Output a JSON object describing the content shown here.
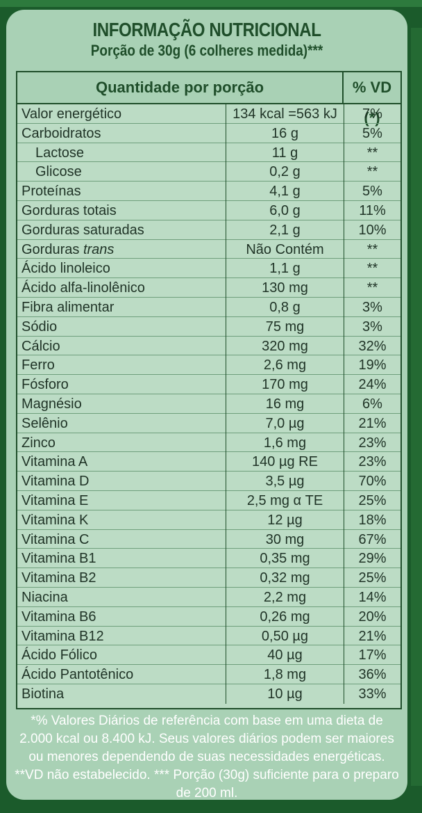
{
  "header": {
    "title": "INFORMAÇÃO NUTRICIONAL",
    "subtitle": "Porção de 30g (6 colheres medida)***"
  },
  "table": {
    "col_quantity": "Quantidade por porção",
    "col_vd": "% VD (*)",
    "rows": [
      {
        "name": "Valor  energético",
        "value": "134 kcal =563 kJ",
        "vd": "7%"
      },
      {
        "name": "Carboidratos",
        "value": "16 g",
        "vd": "5%"
      },
      {
        "name": "Lactose",
        "value": "11 g",
        "vd": "**"
      },
      {
        "name": "Glicose",
        "value": "0,2 g",
        "vd": "**"
      },
      {
        "name": "Proteínas",
        "value": "4,1 g",
        "vd": "5%"
      },
      {
        "name": "Gorduras totais",
        "value": "6,0 g",
        "vd": "11%"
      },
      {
        "name": "Gorduras saturadas",
        "value": "2,1 g",
        "vd": "10%"
      },
      {
        "name": "Gorduras",
        "name_italic": "trans",
        "value": "Não Contém",
        "vd": "**"
      },
      {
        "name": "Ácido linoleico",
        "value": "1,1 g",
        "vd": "**"
      },
      {
        "name": "Ácido alfa-linolênico",
        "value": "130 mg",
        "vd": "**"
      },
      {
        "name": "Fibra alimentar",
        "value": "0,8 g",
        "vd": "3%"
      },
      {
        "name": "Sódio",
        "value": "75 mg",
        "vd": "3%"
      },
      {
        "name": "Cálcio",
        "value": "320 mg",
        "vd": "32%"
      },
      {
        "name": "Ferro",
        "value": "2,6 mg",
        "vd": "19%"
      },
      {
        "name": "Fósforo",
        "value": "170 mg",
        "vd": "24%"
      },
      {
        "name": "Magnésio",
        "value": "16 mg",
        "vd": "6%"
      },
      {
        "name": "Selênio",
        "value": "7,0 µg",
        "vd": "21%"
      },
      {
        "name": "Zinco",
        "value": "1,6 mg",
        "vd": "23%"
      },
      {
        "name": "Vitamina A",
        "value": "140 µg RE",
        "vd": "23%"
      },
      {
        "name": "Vitamina D",
        "value": "3,5 µg",
        "vd": "70%"
      },
      {
        "name": "Vitamina E",
        "value": "2,5 mg α TE",
        "vd": "25%"
      },
      {
        "name": "Vitamina K",
        "value": "12 µg",
        "vd": "18%"
      },
      {
        "name": "Vitamina C",
        "value": "30 mg",
        "vd": "67%"
      },
      {
        "name": "Vitamina B1",
        "value": "0,35 mg",
        "vd": "29%"
      },
      {
        "name": "Vitamina B2",
        "value": "0,32 mg",
        "vd": "25%"
      },
      {
        "name": "Niacina",
        "value": "2,2 mg",
        "vd": "14%"
      },
      {
        "name": "Vitamina B6",
        "value": "0,26 mg",
        "vd": "20%"
      },
      {
        "name": "Vitamina B12",
        "value": "0,50 µg",
        "vd": "21%"
      },
      {
        "name": "Ácido Fólico",
        "value": "40 µg",
        "vd": "17%"
      },
      {
        "name": "Ácido Pantotênico",
        "value": "1,8 mg",
        "vd": "36%"
      },
      {
        "name": "Biotina",
        "value": "10 µg",
        "vd": "33%"
      }
    ]
  },
  "footnote": "*% Valores Diários de referência com base em uma dieta de 2.000 kcal ou 8.400 kJ. Seus valores diários podem ser maiores ou menores dependendo de suas necessidades energéticas. **VD não estabelecido. *** Porção (30g) suficiente para o preparo de 200 ml.",
  "colors": {
    "background": "#1b5b2b",
    "panel": "#a9d1b5",
    "text_dark": "#1f4e2a",
    "footnote_text": "#ffffff"
  }
}
